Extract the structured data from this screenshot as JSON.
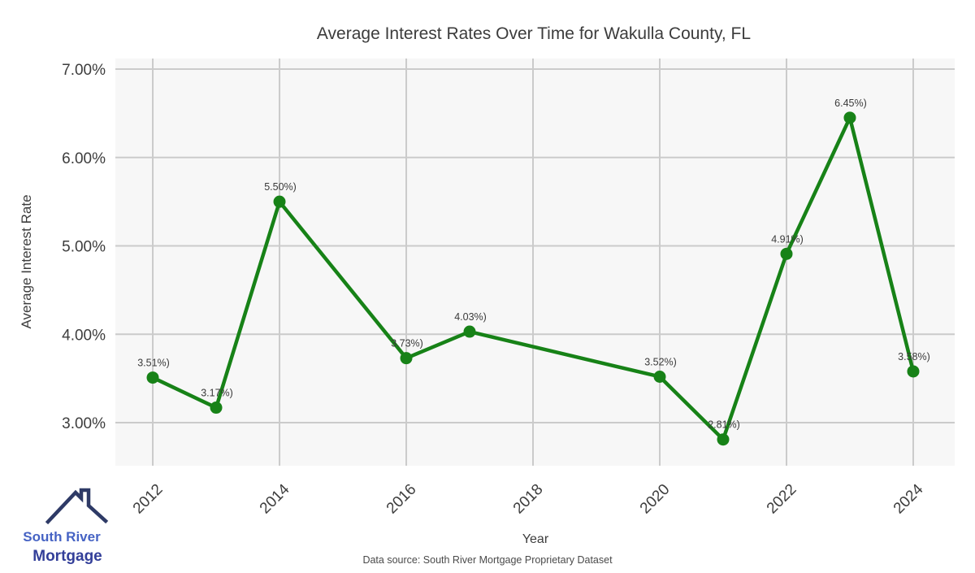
{
  "chart_data": {
    "type": "line",
    "title": "Average Interest Rates Over Time for Wakulla County, FL",
    "xlabel": "Year",
    "ylabel": "Average Interest Rate",
    "x": [
      2012,
      2013,
      2014,
      2016,
      2017,
      2020,
      2021,
      2022,
      2023,
      2024
    ],
    "y": [
      3.51,
      3.17,
      5.5,
      3.73,
      4.03,
      3.52,
      2.81,
      4.91,
      6.45,
      3.58
    ],
    "point_labels": [
      "3.51%)",
      "3.17%)",
      "5.50%)",
      "3.73%)",
      "4.03%)",
      "3.52%)",
      "2.81%)",
      "4.91%)",
      "6.45%)",
      "3.58%)"
    ],
    "x_ticks": [
      2012,
      2014,
      2016,
      2018,
      2020,
      2022,
      2024
    ],
    "x_tick_labels": [
      "2012",
      "2014",
      "2016",
      "2018",
      "2020",
      "2022",
      "2024"
    ],
    "y_ticks": [
      3,
      4,
      5,
      6,
      7
    ],
    "y_tick_labels": [
      "3.00%",
      "4.00%",
      "5.00%",
      "6.00%",
      "7.00%"
    ],
    "xlim": [
      2011.41,
      2024.654
    ],
    "ylim": [
      2.513,
      7.12
    ],
    "grid": true,
    "legend": false,
    "line_color": "#178217",
    "marker_color": "#178217",
    "grid_color": "#cbcbcb",
    "plot_bg": "#f7f7f7"
  },
  "branding": {
    "logo_line1": "South River",
    "logo_line2": "Mortgage",
    "roof_color": "#2e3a66",
    "line1_color": "#4663c4",
    "line2_color": "#333f99"
  },
  "footer": {
    "source": "Data source: South River Mortgage Proprietary Dataset"
  }
}
